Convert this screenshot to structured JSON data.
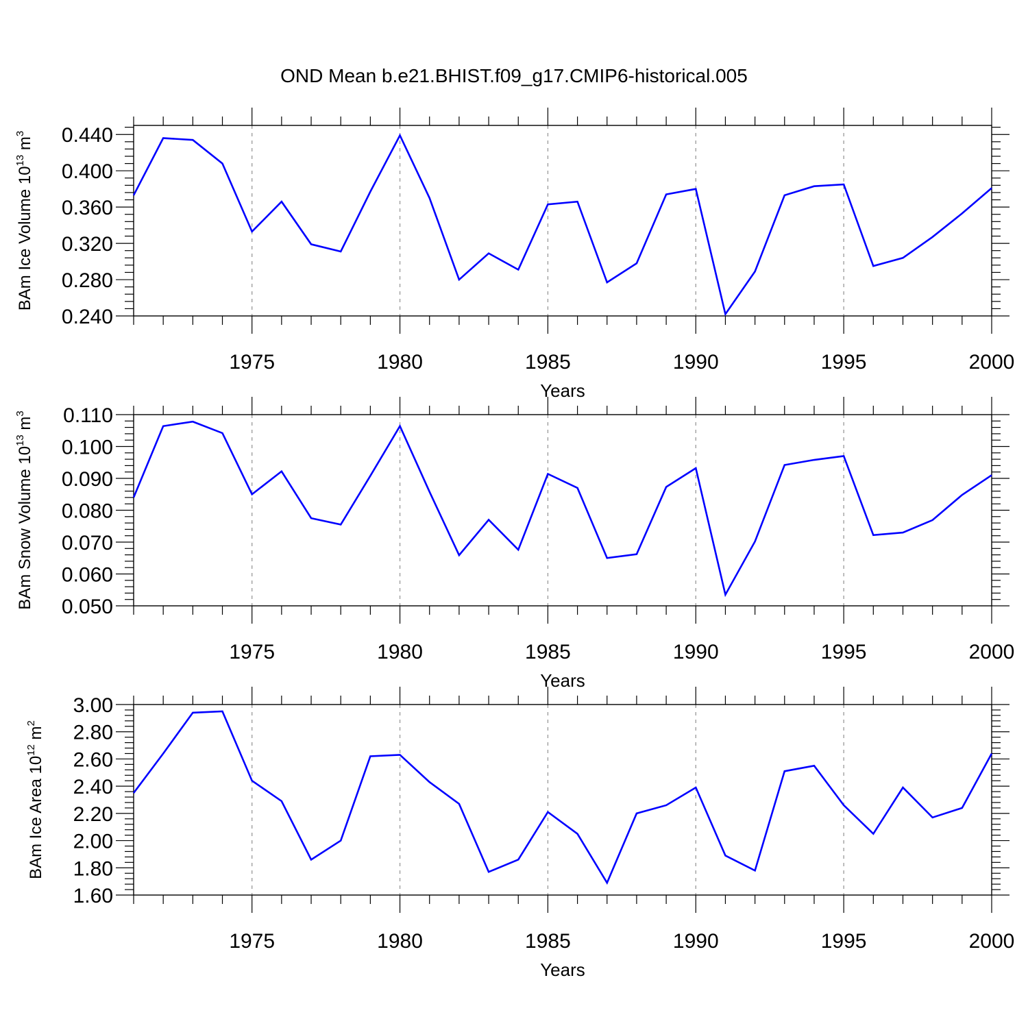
{
  "title": "OND Mean b.e21.BHIST.f09_g17.CMIP6-historical.005",
  "colors": {
    "line": "#0000ff",
    "axis": "#000000",
    "grid": "#999999"
  },
  "chart_data": [
    {
      "type": "line",
      "ylabel": {
        "main": "BAm Ice Volume 10",
        "exp": "13",
        "unit": " m",
        "unit_exp": "3"
      },
      "xlabel": "Years",
      "xlim": [
        1971,
        2000
      ],
      "xticks": [
        1975,
        1980,
        1985,
        1990,
        1995,
        2000
      ],
      "ylim": [
        0.24,
        0.45
      ],
      "yticks": [
        "0.240",
        "0.280",
        "0.320",
        "0.360",
        "0.400",
        "0.440"
      ],
      "x": [
        1971,
        1972,
        1973,
        1974,
        1975,
        1976,
        1977,
        1978,
        1979,
        1980,
        1981,
        1982,
        1983,
        1984,
        1985,
        1986,
        1987,
        1988,
        1989,
        1990,
        1991,
        1992,
        1993,
        1994,
        1995,
        1996,
        1997,
        1998,
        1999,
        2000
      ],
      "values": [
        0.373,
        0.436,
        0.434,
        0.408,
        0.333,
        0.366,
        0.319,
        0.311,
        0.377,
        0.439,
        0.37,
        0.28,
        0.309,
        0.291,
        0.363,
        0.366,
        0.277,
        0.298,
        0.374,
        0.38,
        0.242,
        0.289,
        0.373,
        0.383,
        0.385,
        0.295,
        0.304,
        0.327,
        0.353,
        0.381
      ]
    },
    {
      "type": "line",
      "ylabel": {
        "main": "BAm Snow Volume 10",
        "exp": "13",
        "unit": " m",
        "unit_exp": "3"
      },
      "xlabel": "Years",
      "xlim": [
        1971,
        2000
      ],
      "xticks": [
        1975,
        1980,
        1985,
        1990,
        1995,
        2000
      ],
      "ylim": [
        0.05,
        0.11
      ],
      "yticks": [
        "0.050",
        "0.060",
        "0.070",
        "0.080",
        "0.090",
        "0.100",
        "0.110"
      ],
      "x": [
        1971,
        1972,
        1973,
        1974,
        1975,
        1976,
        1977,
        1978,
        1979,
        1980,
        1981,
        1982,
        1983,
        1984,
        1985,
        1986,
        1987,
        1988,
        1989,
        1990,
        1991,
        1992,
        1993,
        1994,
        1995,
        1996,
        1997,
        1998,
        1999,
        2000
      ],
      "values": [
        0.084,
        0.1064,
        0.1078,
        0.1042,
        0.085,
        0.0922,
        0.0775,
        0.0755,
        0.0908,
        0.1064,
        0.0858,
        0.0659,
        0.077,
        0.0676,
        0.0914,
        0.087,
        0.065,
        0.0662,
        0.0873,
        0.0932,
        0.0535,
        0.0702,
        0.0942,
        0.0958,
        0.097,
        0.0722,
        0.073,
        0.0769,
        0.0848,
        0.091
      ]
    },
    {
      "type": "line",
      "ylabel": {
        "main": "BAm Ice Area 10",
        "exp": "12",
        "unit": " m",
        "unit_exp": "2"
      },
      "xlabel": "Years",
      "xlim": [
        1971,
        2000
      ],
      "xticks": [
        1975,
        1980,
        1985,
        1990,
        1995,
        2000
      ],
      "ylim": [
        1.6,
        3.0
      ],
      "yticks": [
        "1.60",
        "1.80",
        "2.00",
        "2.20",
        "2.40",
        "2.60",
        "2.80",
        "3.00"
      ],
      "x": [
        1971,
        1972,
        1973,
        1974,
        1975,
        1976,
        1977,
        1978,
        1979,
        1980,
        1981,
        1982,
        1983,
        1984,
        1985,
        1986,
        1987,
        1988,
        1989,
        1990,
        1991,
        1992,
        1993,
        1994,
        1995,
        1996,
        1997,
        1998,
        1999,
        2000
      ],
      "values": [
        2.35,
        2.64,
        2.94,
        2.95,
        2.44,
        2.29,
        1.86,
        2.0,
        2.62,
        2.63,
        2.43,
        2.27,
        1.77,
        1.86,
        2.21,
        2.05,
        1.69,
        2.2,
        2.26,
        2.39,
        1.89,
        1.78,
        2.51,
        2.55,
        2.26,
        2.05,
        2.39,
        2.17,
        2.24,
        2.64
      ]
    }
  ]
}
